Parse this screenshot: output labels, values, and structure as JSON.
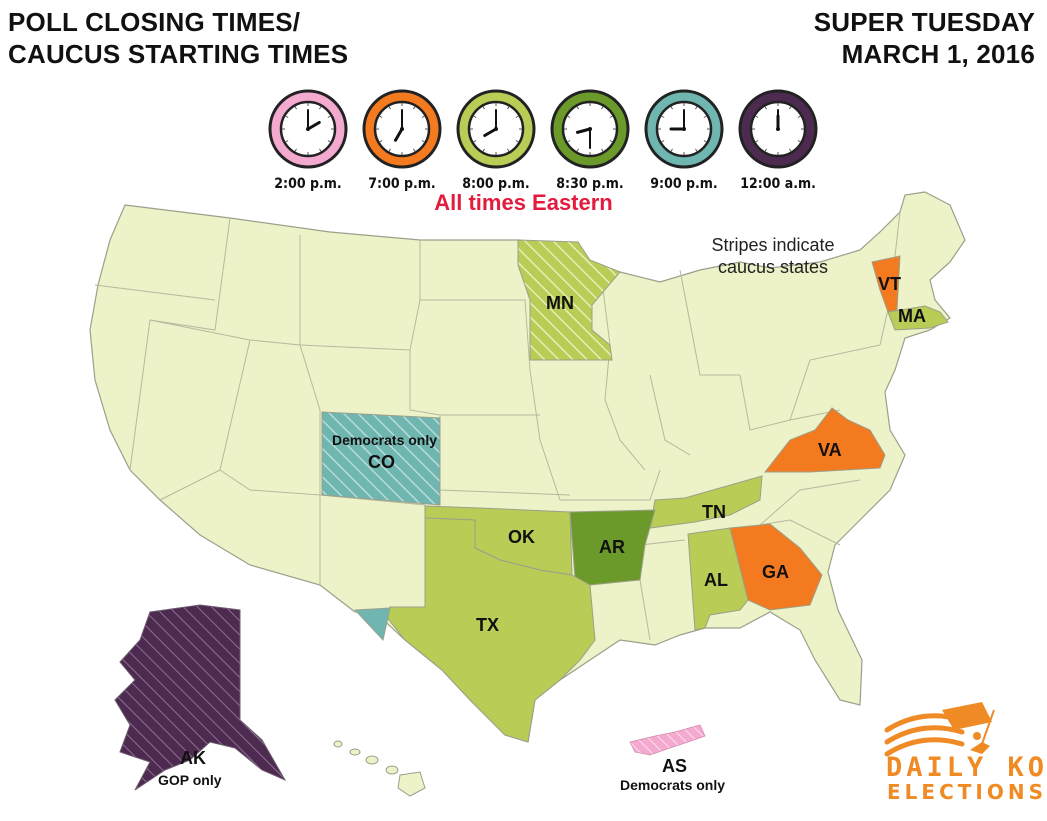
{
  "header": {
    "title_line1": "POLL CLOSING TIMES/",
    "title_line2": "CAUCUS STARTING TIMES",
    "event_line1": "SUPER TUESDAY",
    "event_line2": "MARCH 1, 2016"
  },
  "clocks": [
    {
      "label": "2:00 p.m.",
      "color": "#f4a9cf",
      "hour": 2,
      "minute": 0
    },
    {
      "label": "7:00 p.m.",
      "color": "#f47a20",
      "hour": 7,
      "minute": 0
    },
    {
      "label": "8:00 p.m.",
      "color": "#b9cc55",
      "hour": 8,
      "minute": 0
    },
    {
      "label": "8:30 p.m.",
      "color": "#6b9a2a",
      "hour": 8,
      "minute": 30
    },
    {
      "label": "9:00 p.m.",
      "color": "#6fb5b0",
      "hour": 9,
      "minute": 0
    },
    {
      "label": "12:00 a.m.",
      "color": "#4d2a50",
      "hour": 12,
      "minute": 0
    }
  ],
  "timezone_note": "All times Eastern",
  "legend_note_line1": "Stripes indicate",
  "legend_note_line2": "caucus states",
  "colors": {
    "base_state": "#eef2c8",
    "border": "#9aa08a",
    "pm2": "#f4a9cf",
    "pm7": "#f47a20",
    "pm8": "#b9cc55",
    "pm830": "#6b9a2a",
    "pm9": "#6fb5b0",
    "am12": "#4d2a50"
  },
  "states": {
    "MN": {
      "label": "MN"
    },
    "VT": {
      "label": "VT"
    },
    "MA": {
      "label": "MA"
    },
    "CO": {
      "label": "CO",
      "note": "Democrats only"
    },
    "VA": {
      "label": "VA"
    },
    "TN": {
      "label": "TN"
    },
    "OK": {
      "label": "OK"
    },
    "AR": {
      "label": "AR"
    },
    "TX": {
      "label": "TX"
    },
    "AL": {
      "label": "AL"
    },
    "GA": {
      "label": "GA"
    },
    "AK": {
      "label": "AK",
      "note": "GOP only"
    },
    "AS": {
      "label": "AS",
      "note": "Democrats only"
    }
  },
  "logo": {
    "line1": "DAILY KOS",
    "line2": "ELECTIONS",
    "color": "#f08a24"
  }
}
